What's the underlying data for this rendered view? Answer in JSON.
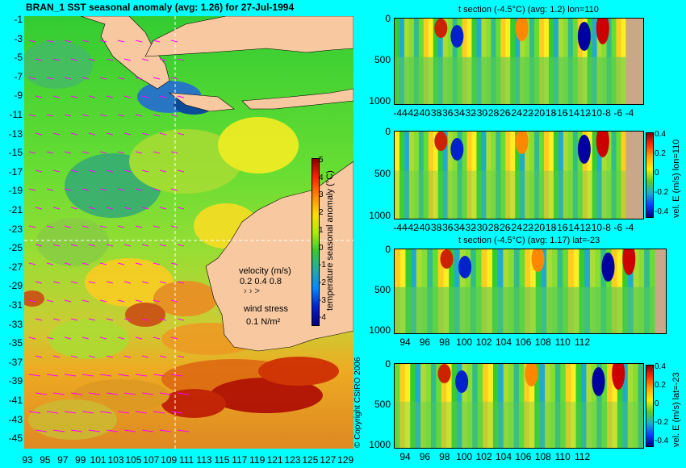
{
  "map_panel": {
    "title": "BRAN_1  SST seasonal anomaly  (avg: 1.26) for 27-Jul-1994",
    "lat_ticks": [
      "-1",
      "-3",
      "-5",
      "-7",
      "-9",
      "-11",
      "-13",
      "-15",
      "-17",
      "-19",
      "-21",
      "-23",
      "-25",
      "-27",
      "-29",
      "-31",
      "-33",
      "-35",
      "-37",
      "-39",
      "-41",
      "-43",
      "-45"
    ],
    "lon_ticks": [
      "93",
      "95",
      "97",
      "99",
      "101",
      "103",
      "105",
      "107",
      "109",
      "111",
      "113",
      "115",
      "117",
      "119",
      "121",
      "123",
      "125",
      "127",
      "129"
    ],
    "colorbar": {
      "label": "temperature seasonal anomaly (°C)",
      "ticks": [
        "5",
        "4",
        "3",
        "2",
        "1",
        "0",
        "-1",
        "-2",
        "-3",
        "-4"
      ]
    },
    "velocity_legend": {
      "title": "velocity (m/s)",
      "values": "0.2 0.4 0.8",
      "arrows": "›  ›  >"
    },
    "wind_legend": {
      "title": "wind stress",
      "value": "0.1 N/m²"
    },
    "copyright": "© Copyright CSIRO 2006",
    "colors": {
      "land": "#f8c8a0",
      "anomaly_low": "#0000a0",
      "anomaly_high": "#b00000",
      "arrows": "#ff00ff"
    }
  },
  "sections": [
    {
      "id": "t-section-lon",
      "title": "t section (-4.5°C) (avg: 1.2) lon=110",
      "y_ticks": [
        "0",
        "500",
        "1000"
      ],
      "x_ticks": [
        "-44",
        "-42",
        "-40",
        "-38",
        "-36",
        "-34",
        "-32",
        "-30",
        "-28",
        "-26",
        "-24",
        "-22",
        "-20",
        "-18",
        "-16",
        "-14",
        "-12",
        "-10",
        "-8",
        "-6",
        "-4"
      ]
    },
    {
      "id": "vel-section-lon",
      "title": "",
      "y_ticks": [
        "0",
        "500",
        "1000"
      ],
      "x_ticks": [
        "-44",
        "-42",
        "-40",
        "-38",
        "-36",
        "-34",
        "-32",
        "-30",
        "-28",
        "-26",
        "-24",
        "-22",
        "-20",
        "-18",
        "-16",
        "-14",
        "-12",
        "-10",
        "-8",
        "-6",
        "-4"
      ],
      "colorbar": {
        "label": "vel. E (m/s) lon=110",
        "ticks": [
          "0.4",
          "0.2",
          "0",
          "-0.2",
          "-0.4"
        ]
      }
    },
    {
      "id": "t-section-lat",
      "title": "t section (-4.5°C) (avg: 1.17) lat=-23",
      "y_ticks": [
        "0",
        "500",
        "1000"
      ],
      "x_ticks": [
        "94",
        "96",
        "98",
        "100",
        "102",
        "104",
        "106",
        "108",
        "110",
        "112"
      ]
    },
    {
      "id": "vel-section-lat",
      "title": "",
      "y_ticks": [
        "0",
        "500",
        "1000"
      ],
      "x_ticks": [
        "94",
        "96",
        "98",
        "100",
        "102",
        "104",
        "106",
        "108",
        "110",
        "112"
      ],
      "colorbar": {
        "label": "vel. E (m/s) lat=-23",
        "ticks": [
          "0.4",
          "0.2",
          "0",
          "-0.2",
          "-0.4"
        ]
      }
    }
  ]
}
